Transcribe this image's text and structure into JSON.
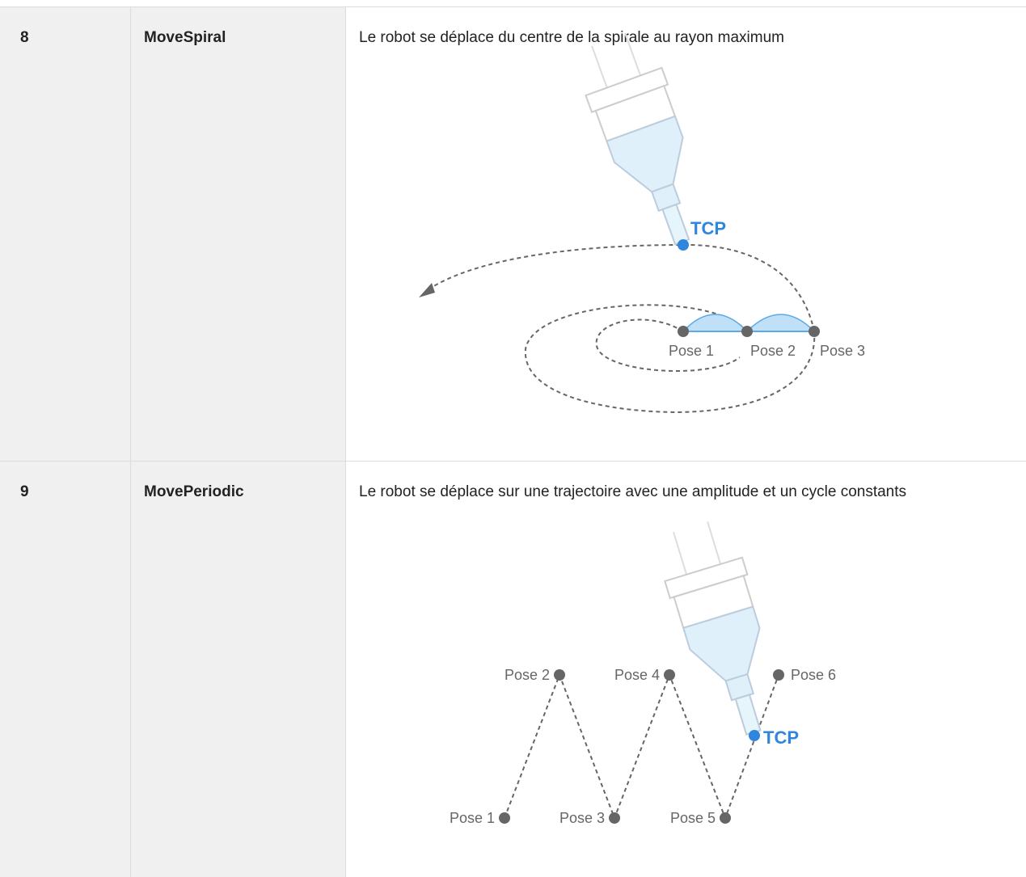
{
  "table": {
    "rows": [
      {
        "number": "8",
        "name": "MoveSpiral",
        "description": "Le robot se déplace du centre de la spirale au rayon maximum",
        "figure": {
          "tcp": "TCP",
          "poses": [
            "Pose 1",
            "Pose 2",
            "Pose 3"
          ]
        }
      },
      {
        "number": "9",
        "name": "MovePeriodic",
        "description": "Le robot se déplace sur une trajectoire avec une amplitude et un cycle constants",
        "figure": {
          "tcp": "TCP",
          "poses": [
            "Pose 1",
            "Pose 2",
            "Pose 3",
            "Pose 4",
            "Pose 5",
            "Pose 6"
          ]
        }
      }
    ]
  }
}
